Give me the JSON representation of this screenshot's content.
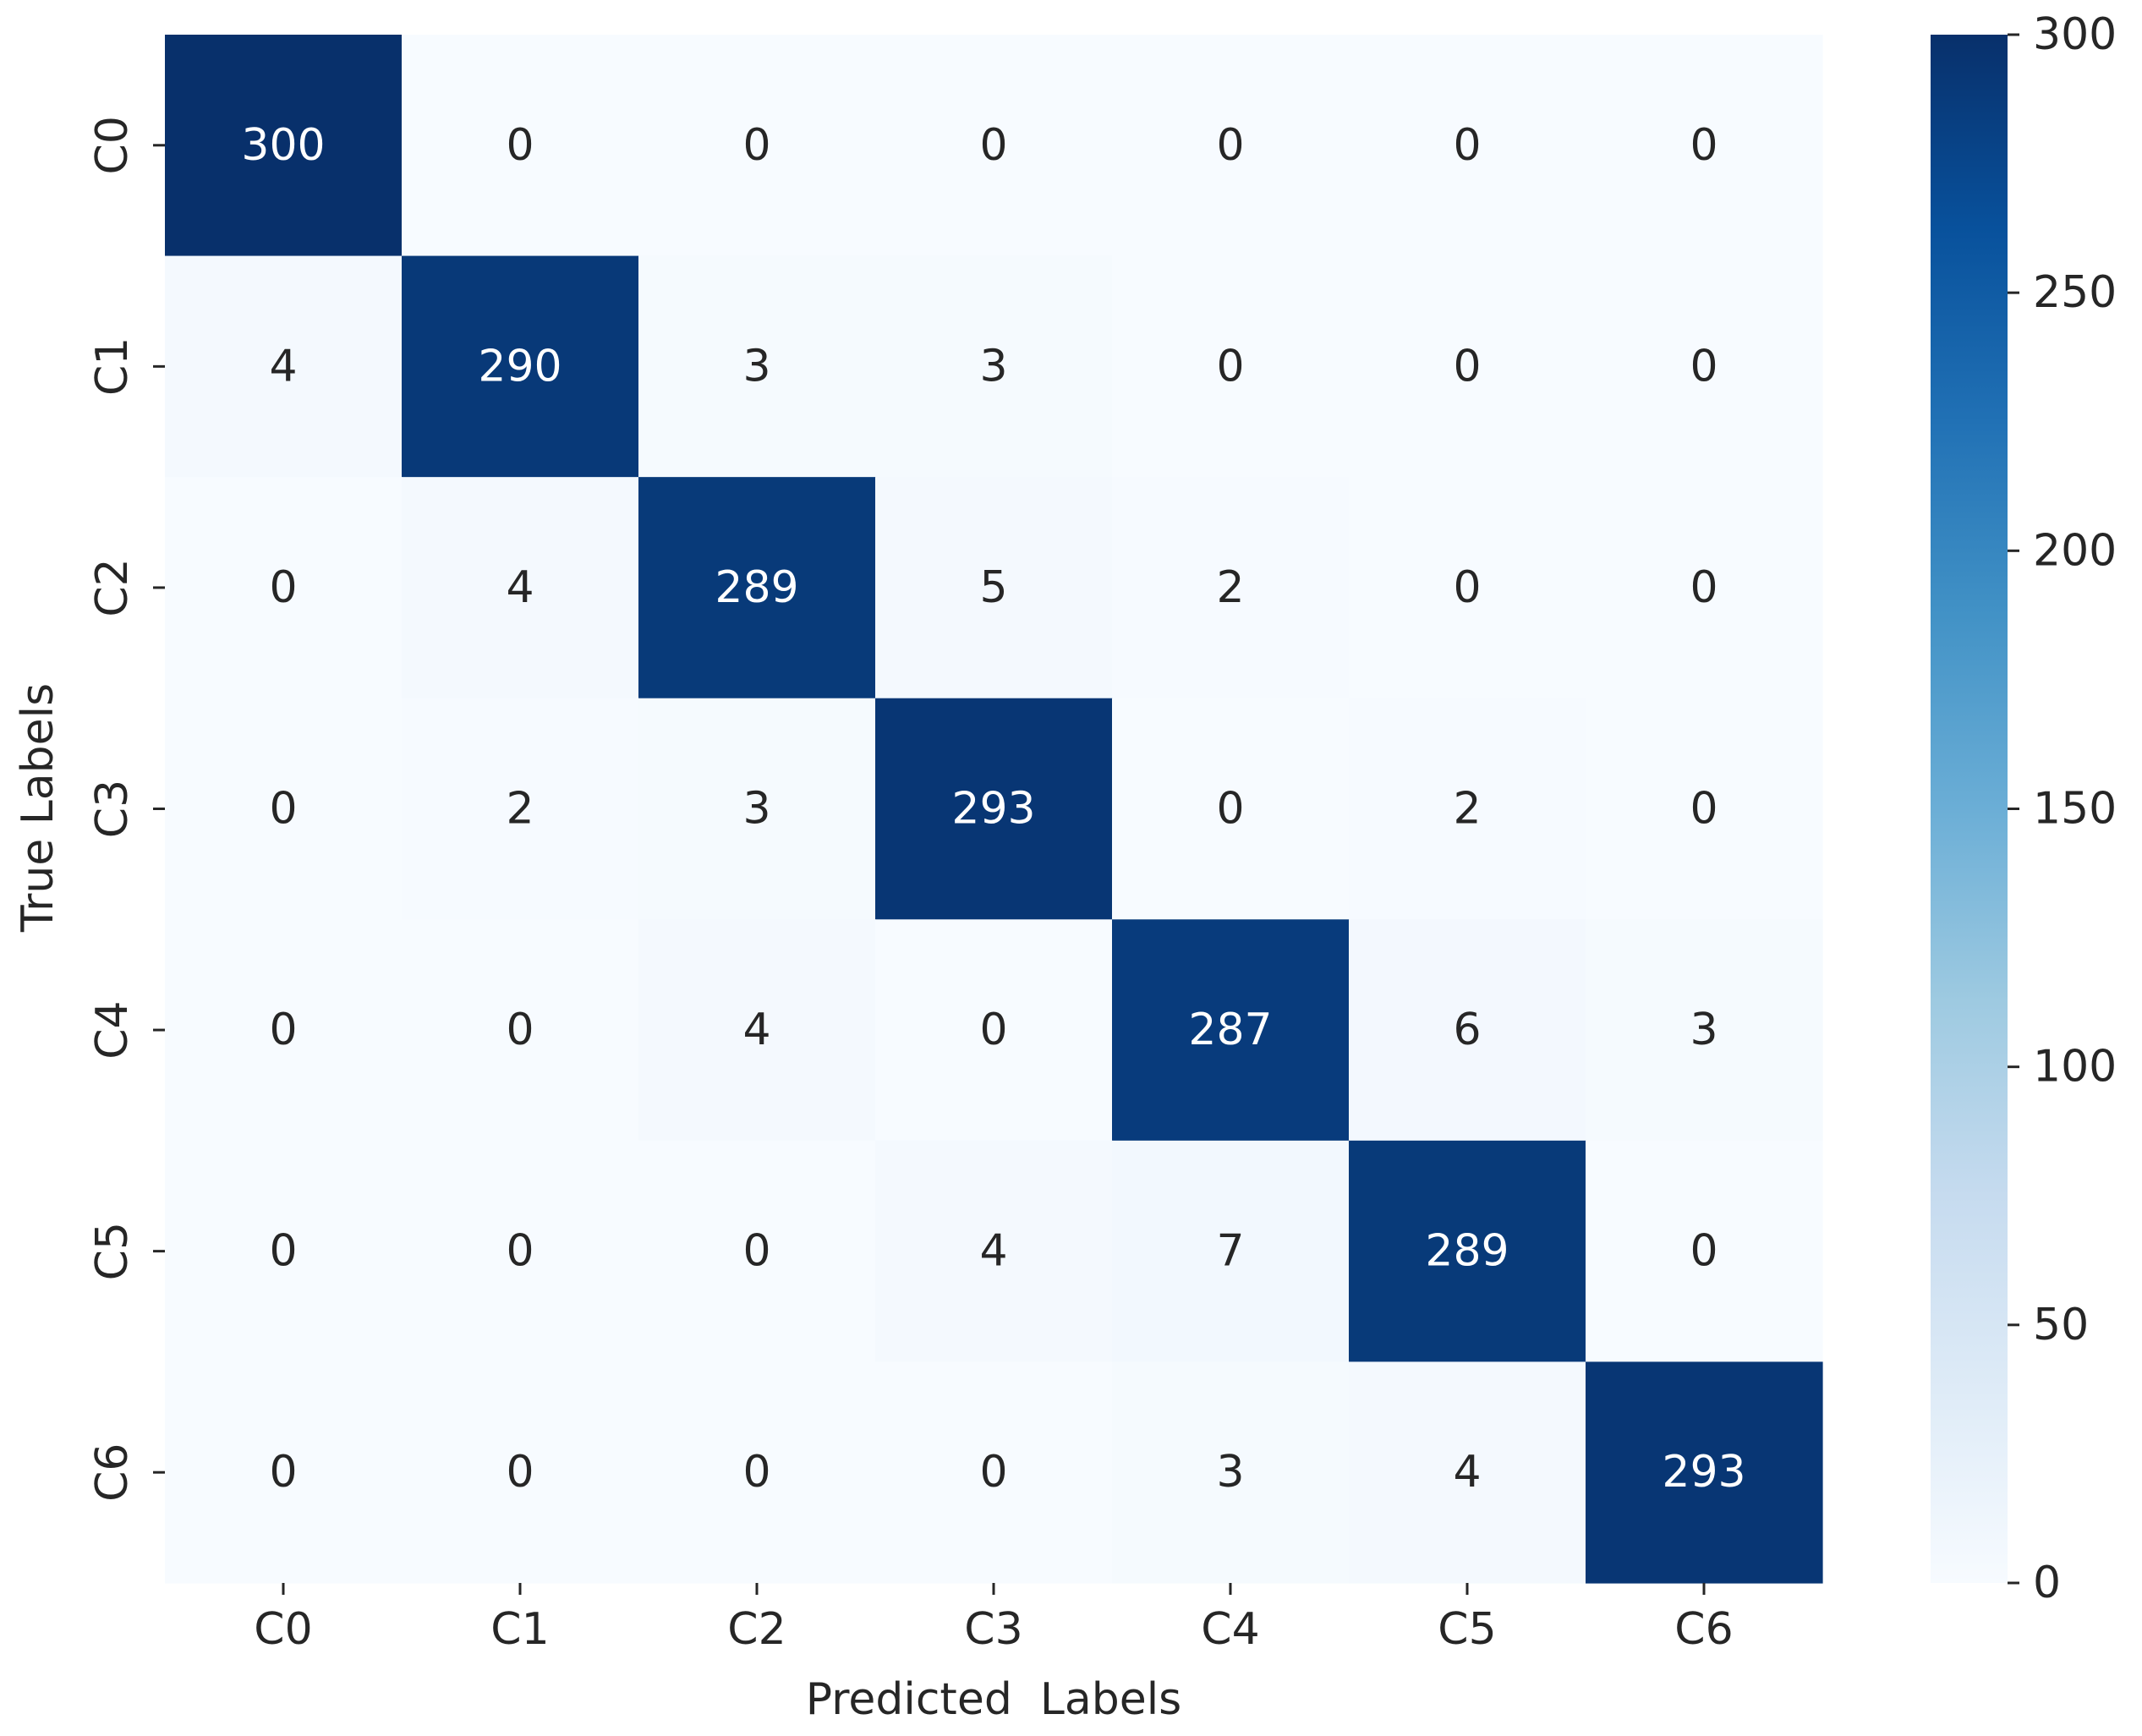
{
  "chart_data": {
    "type": "heatmap",
    "title": "",
    "xlabel": "Predicted  Labels",
    "ylabel": "True Labels",
    "x_categories": [
      "C0",
      "C1",
      "C2",
      "C3",
      "C4",
      "C5",
      "C6"
    ],
    "y_categories": [
      "C0",
      "C1",
      "C2",
      "C3",
      "C4",
      "C5",
      "C6"
    ],
    "values": [
      [
        300,
        0,
        0,
        0,
        0,
        0,
        0
      ],
      [
        4,
        290,
        3,
        3,
        0,
        0,
        0
      ],
      [
        0,
        4,
        289,
        5,
        2,
        0,
        0
      ],
      [
        0,
        2,
        3,
        293,
        0,
        2,
        0
      ],
      [
        0,
        0,
        4,
        0,
        287,
        6,
        3
      ],
      [
        0,
        0,
        0,
        4,
        7,
        289,
        0
      ],
      [
        0,
        0,
        0,
        0,
        3,
        4,
        293
      ]
    ],
    "colorbar": {
      "min": 0,
      "max": 300,
      "ticks": [
        0,
        50,
        100,
        150,
        200,
        250,
        300
      ],
      "colormap": "Blues"
    },
    "colors": {
      "low": "#f7fbff",
      "high": "#08306b",
      "text_dark": "#262626",
      "text_light": "#ffffff"
    }
  }
}
